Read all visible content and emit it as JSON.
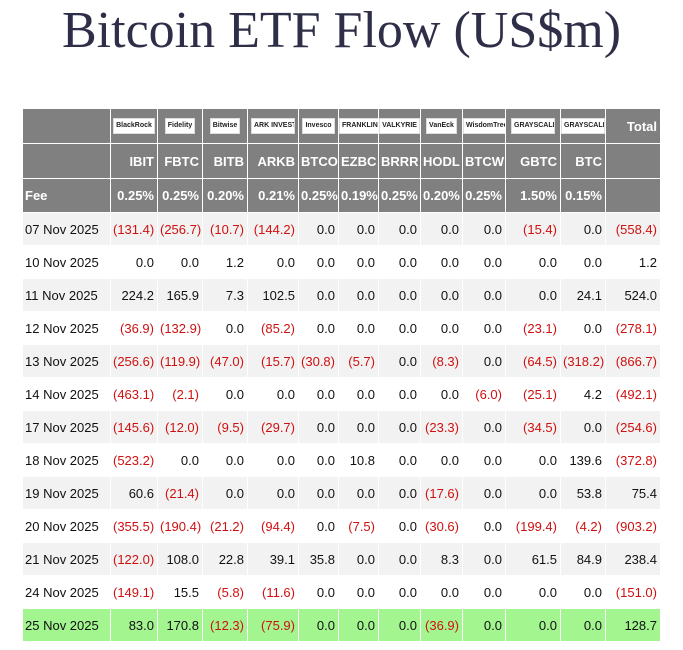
{
  "title": "Bitcoin ETF Flow (US$m)",
  "table": {
    "logos": [
      "BlackRock",
      "Fidelity",
      "Bitwise",
      "ARK INVEST",
      "Invesco",
      "FRANKLIN TEMPLETON",
      "VALKYRIE",
      "VanEck",
      "WisdomTree",
      "GRAYSCALE",
      "GRAYSCALE"
    ],
    "total_label": "Total",
    "tickers": [
      "IBIT",
      "FBTC",
      "BITB",
      "ARKB",
      "BTCO",
      "EZBC",
      "BRRR",
      "HODL",
      "BTCW",
      "GBTC",
      "BTC"
    ],
    "fee_label": "Fee",
    "fees": [
      "0.25%",
      "0.25%",
      "0.20%",
      "0.21%",
      "0.25%",
      "0.19%",
      "0.25%",
      "0.20%",
      "0.25%",
      "1.50%",
      "0.15%"
    ],
    "rows": [
      [
        "07 Nov 2025",
        "(131.4)",
        "(256.7)",
        "(10.7)",
        "(144.2)",
        "0.0",
        "0.0",
        "0.0",
        "0.0",
        "0.0",
        "(15.4)",
        "0.0",
        "(558.4)"
      ],
      [
        "10 Nov 2025",
        "0.0",
        "0.0",
        "1.2",
        "0.0",
        "0.0",
        "0.0",
        "0.0",
        "0.0",
        "0.0",
        "0.0",
        "0.0",
        "1.2"
      ],
      [
        "11 Nov 2025",
        "224.2",
        "165.9",
        "7.3",
        "102.5",
        "0.0",
        "0.0",
        "0.0",
        "0.0",
        "0.0",
        "0.0",
        "24.1",
        "524.0"
      ],
      [
        "12 Nov 2025",
        "(36.9)",
        "(132.9)",
        "0.0",
        "(85.2)",
        "0.0",
        "0.0",
        "0.0",
        "0.0",
        "0.0",
        "(23.1)",
        "0.0",
        "(278.1)"
      ],
      [
        "13 Nov 2025",
        "(256.6)",
        "(119.9)",
        "(47.0)",
        "(15.7)",
        "(30.8)",
        "(5.7)",
        "0.0",
        "(8.3)",
        "0.0",
        "(64.5)",
        "(318.2)",
        "(866.7)"
      ],
      [
        "14 Nov 2025",
        "(463.1)",
        "(2.1)",
        "0.0",
        "0.0",
        "0.0",
        "0.0",
        "0.0",
        "0.0",
        "(6.0)",
        "(25.1)",
        "4.2",
        "(492.1)"
      ],
      [
        "17 Nov 2025",
        "(145.6)",
        "(12.0)",
        "(9.5)",
        "(29.7)",
        "0.0",
        "0.0",
        "0.0",
        "(23.3)",
        "0.0",
        "(34.5)",
        "0.0",
        "(254.6)"
      ],
      [
        "18 Nov 2025",
        "(523.2)",
        "0.0",
        "0.0",
        "0.0",
        "0.0",
        "10.8",
        "0.0",
        "0.0",
        "0.0",
        "0.0",
        "139.6",
        "(372.8)"
      ],
      [
        "19 Nov 2025",
        "60.6",
        "(21.4)",
        "0.0",
        "0.0",
        "0.0",
        "0.0",
        "0.0",
        "(17.6)",
        "0.0",
        "0.0",
        "53.8",
        "75.4"
      ],
      [
        "20 Nov 2025",
        "(355.5)",
        "(190.4)",
        "(21.2)",
        "(94.4)",
        "0.0",
        "(7.5)",
        "0.0",
        "(30.6)",
        "0.0",
        "(199.4)",
        "(4.2)",
        "(903.2)"
      ],
      [
        "21 Nov 2025",
        "(122.0)",
        "108.0",
        "22.8",
        "39.1",
        "35.8",
        "0.0",
        "0.0",
        "8.3",
        "0.0",
        "61.5",
        "84.9",
        "238.4"
      ],
      [
        "24 Nov 2025",
        "(149.1)",
        "15.5",
        "(5.8)",
        "(11.6)",
        "0.0",
        "0.0",
        "0.0",
        "0.0",
        "0.0",
        "0.0",
        "0.0",
        "(151.0)"
      ],
      [
        "25 Nov 2025",
        "83.0",
        "170.8",
        "(12.3)",
        "(75.9)",
        "0.0",
        "0.0",
        "0.0",
        "(36.9)",
        "0.0",
        "0.0",
        "0.0",
        "128.7"
      ]
    ]
  }
}
